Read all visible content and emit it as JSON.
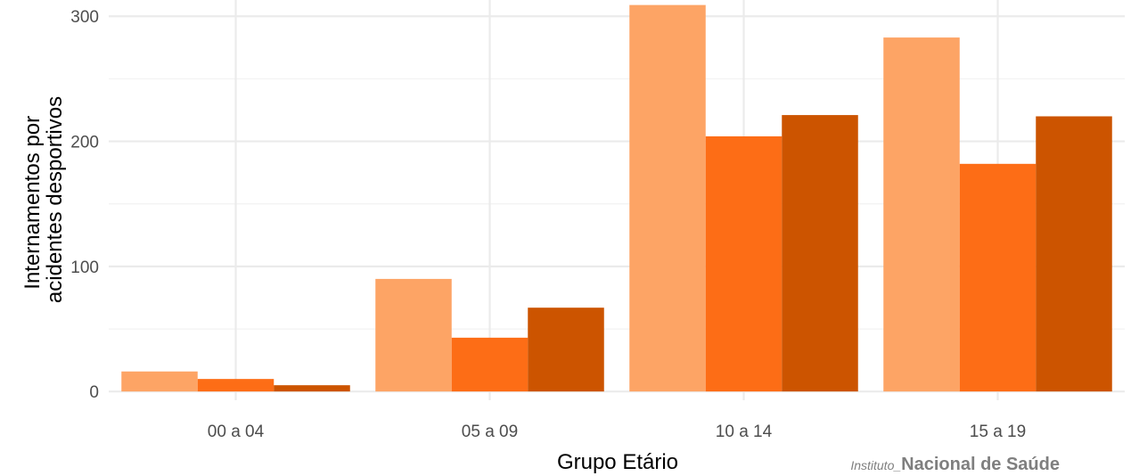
{
  "chart_data": {
    "type": "bar",
    "categories": [
      "00 a 04",
      "05 a 09",
      "10 a 14",
      "15 a 19"
    ],
    "series": [
      {
        "color": "#fda465",
        "values": [
          16,
          90,
          309,
          283
        ]
      },
      {
        "color": "#fd6d16",
        "values": [
          10,
          43,
          204,
          182
        ]
      },
      {
        "color": "#cc5400",
        "values": [
          5,
          67,
          221,
          220
        ]
      }
    ],
    "xlabel": "Grupo Etário",
    "ylabel_lines": [
      "Internamentos por",
      "acidentes desportivos"
    ],
    "y_ticks": [
      0,
      100,
      200,
      300
    ],
    "ylim": [
      -7,
      313
    ],
    "grid": true,
    "legend": "none"
  },
  "source": {
    "prefix": "Instituto_",
    "name": "Nacional de Saúde"
  }
}
